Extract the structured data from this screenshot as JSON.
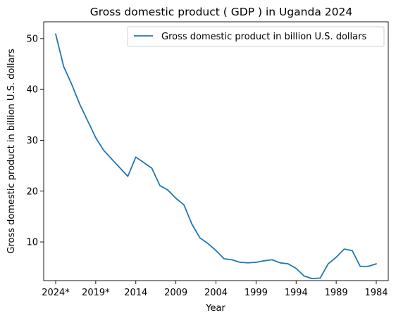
{
  "chart_data": {
    "type": "line",
    "title": "Gross domestic product ( GDP ) in Uganda 2024",
    "xlabel": "Year",
    "ylabel": "Gross domestic product in billion U.S. dollars",
    "x_reversed": true,
    "xlim": [
      1984,
      2024
    ],
    "ylim": [
      2.4,
      53.3
    ],
    "x_ticks": [
      {
        "value": 2024,
        "label": "2024*"
      },
      {
        "value": 2019,
        "label": "2019*"
      },
      {
        "value": 2014,
        "label": "2014"
      },
      {
        "value": 2009,
        "label": "2009"
      },
      {
        "value": 2004,
        "label": "2004"
      },
      {
        "value": 1999,
        "label": "1999"
      },
      {
        "value": 1994,
        "label": "1994"
      },
      {
        "value": 1989,
        "label": "1989"
      },
      {
        "value": 1984,
        "label": "1984"
      }
    ],
    "y_ticks": [
      10,
      20,
      30,
      40,
      50
    ],
    "grid": false,
    "legend_position": "top-right",
    "series": [
      {
        "name": "Gross domestic product in billion U.S. dollars",
        "color": "#1f77b4",
        "x": [
          2024,
          2023,
          2022,
          2021,
          2020,
          2019,
          2018,
          2017,
          2016,
          2015,
          2014,
          2013,
          2012,
          2011,
          2010,
          2009,
          2008,
          2007,
          2006,
          2005,
          2004,
          2003,
          2002,
          2001,
          2000,
          1999,
          1998,
          1997,
          1996,
          1995,
          1994,
          1993,
          1992,
          1991,
          1990,
          1989,
          1988,
          1987,
          1986,
          1985,
          1984
        ],
        "values": [
          50.9,
          44.5,
          41.0,
          37.1,
          33.8,
          30.5,
          28.0,
          26.3,
          24.6,
          22.9,
          26.7,
          25.6,
          24.5,
          21.1,
          20.2,
          18.6,
          17.3,
          13.5,
          10.8,
          9.7,
          8.3,
          6.7,
          6.5,
          6.0,
          5.9,
          6.0,
          6.3,
          6.5,
          5.9,
          5.7,
          4.8,
          3.3,
          2.8,
          2.9,
          5.7,
          7.0,
          8.6,
          8.3,
          5.2,
          5.2,
          5.7
        ]
      }
    ]
  }
}
